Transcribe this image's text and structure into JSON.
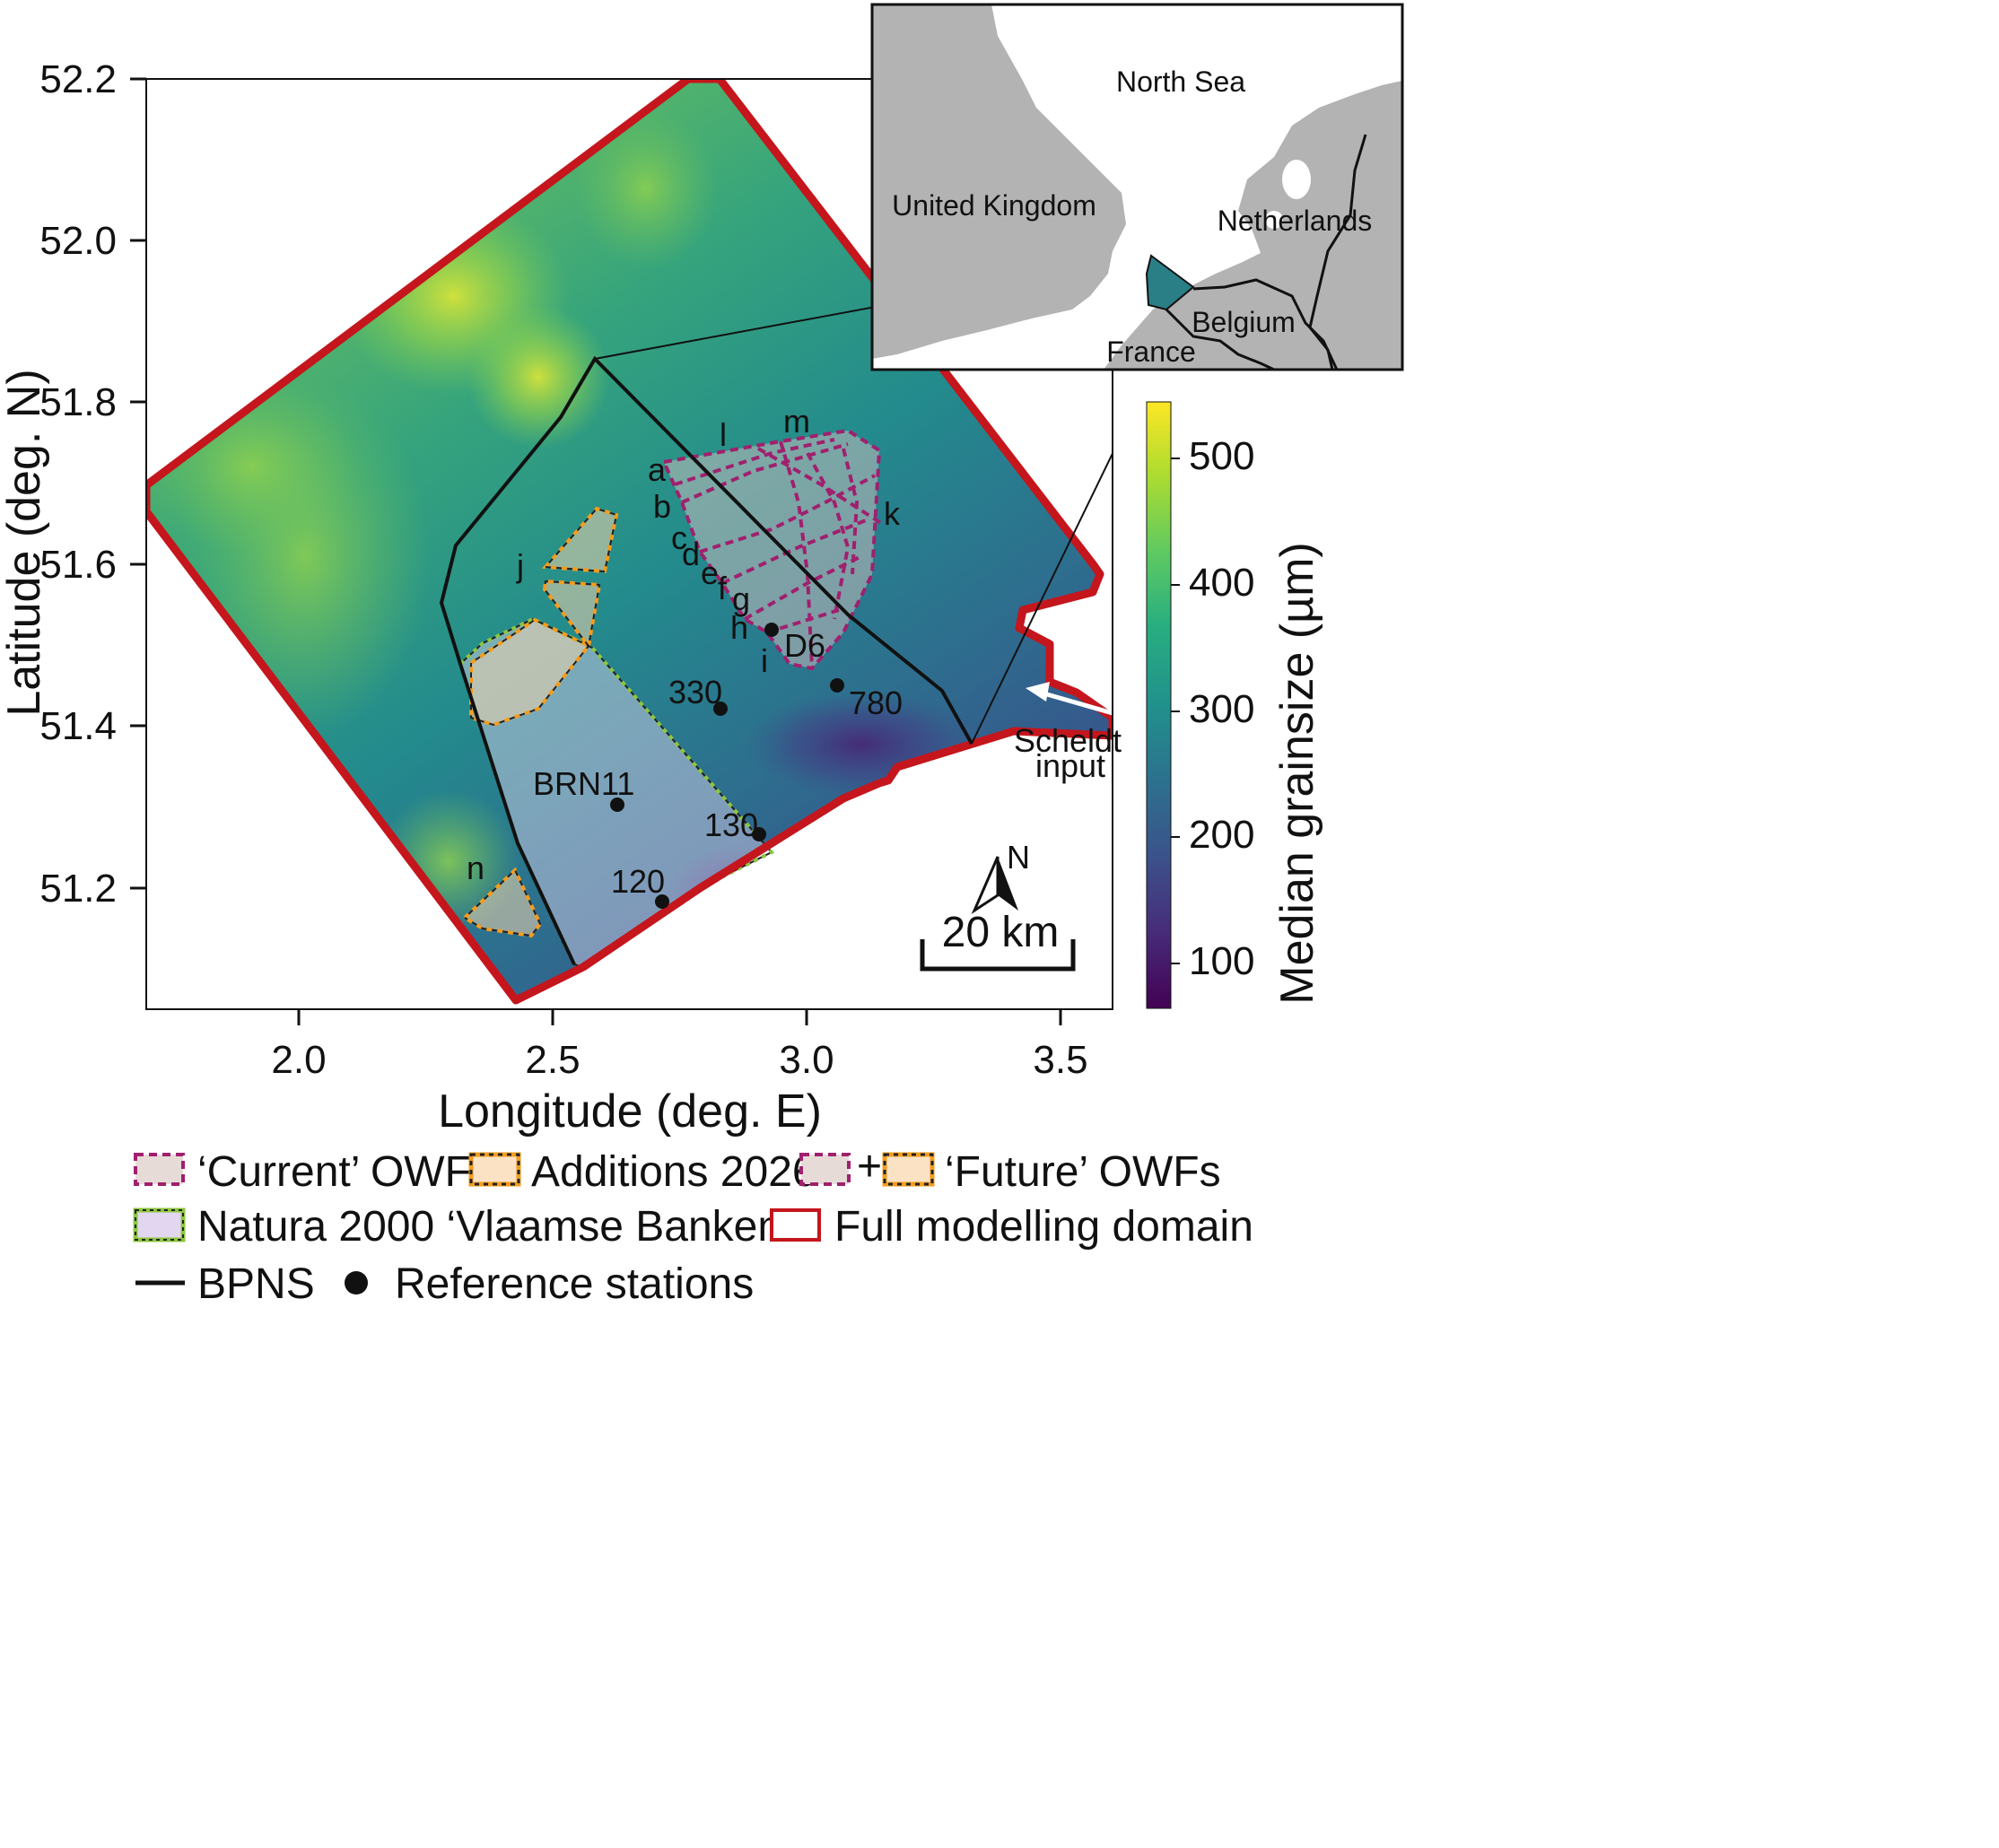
{
  "map": {
    "x_axis": {
      "label": "Longitude (deg. E)",
      "ticks": [
        "2.0",
        "2.5",
        "3.0",
        "3.5"
      ]
    },
    "y_axis": {
      "label": "Latitude (deg. N)",
      "ticks": [
        "52.2",
        "52.0",
        "51.8",
        "51.6",
        "51.4",
        "51.2"
      ]
    },
    "owf_labels": [
      "a",
      "b",
      "c",
      "d",
      "e",
      "f",
      "g",
      "h",
      "i",
      "j",
      "k",
      "l",
      "m",
      "n"
    ],
    "stations": [
      {
        "name": "D6",
        "lon": 2.93,
        "lat": 51.52
      },
      {
        "name": "330",
        "lon": 2.83,
        "lat": 51.42
      },
      {
        "name": "780",
        "lon": 3.06,
        "lat": 51.45
      },
      {
        "name": "BRN11",
        "lon": 2.63,
        "lat": 51.3
      },
      {
        "name": "130",
        "lon": 2.91,
        "lat": 51.265
      },
      {
        "name": "120",
        "lon": 2.72,
        "lat": 51.185
      }
    ],
    "scheldt_label": [
      "Scheldt",
      "input"
    ],
    "north_label": "N",
    "scale_label": "20 km",
    "colors": {
      "domain_outline": "#c4161c",
      "current_owf": "#a0206e",
      "additions_2026": "#f39c1e",
      "natura_edge": "#8dc63f",
      "bpns": "#111111",
      "station": "#111111"
    }
  },
  "inset": {
    "title": "North Sea",
    "countries": [
      "United Kingdom",
      "Netherlands",
      "Belgium",
      "France"
    ],
    "land_color": "#b3b3b3"
  },
  "colorbar": {
    "label": "Median grainsize (µm)",
    "ticks": [
      "500",
      "400",
      "300",
      "200",
      "100"
    ],
    "colormap": "viridis"
  },
  "legend": {
    "current": "‘Current’ OWFs",
    "additions": "Additions 2026",
    "plus": "+",
    "future": "‘Future’ OWFs",
    "natura": "Natura 2000 ‘Vlaamse Banken’",
    "domain": "Full modelling domain",
    "bpns": "BPNS",
    "stations": "Reference stations"
  }
}
